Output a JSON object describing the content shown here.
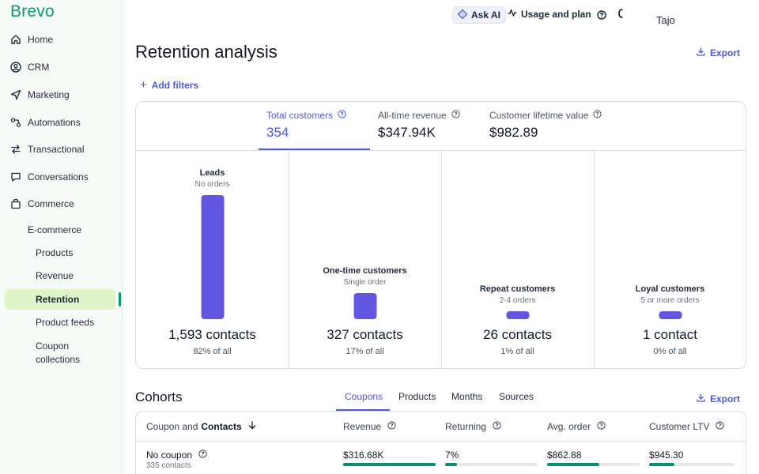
{
  "sidebar": {
    "logo": "Brevo",
    "items": [
      {
        "label": "Home",
        "icon": "home-icon"
      },
      {
        "label": "CRM",
        "icon": "contacts-icon"
      },
      {
        "label": "Marketing",
        "icon": "send-icon"
      },
      {
        "label": "Automations",
        "icon": "automation-icon"
      },
      {
        "label": "Transactional",
        "icon": "transfer-icon"
      },
      {
        "label": "Conversations",
        "icon": "chat-icon"
      },
      {
        "label": "Commerce",
        "icon": "bag-icon"
      }
    ],
    "ecommerce_label": "E-commerce",
    "sub_items": [
      "Products",
      "Revenue",
      "Retention",
      "Product feeds",
      "Coupon",
      "collections"
    ]
  },
  "topbar": {
    "ask_ai": "Ask AI",
    "usage": "Usage and plan",
    "user": "Tajo"
  },
  "page": {
    "title": "Retention analysis",
    "export": "Export",
    "add_filters": "Add filters"
  },
  "metrics": [
    {
      "label": "Total customers",
      "value": "354"
    },
    {
      "label": "All-time revenue",
      "value": "$347.94K"
    },
    {
      "label": "Customer lifetime value",
      "value": "$982.89"
    }
  ],
  "segments": [
    {
      "name": "Leads",
      "desc": "No orders",
      "count": "1,593 contacts",
      "share": "82% of all",
      "percent": 82
    },
    {
      "name": "One-time customers",
      "desc": "Single order",
      "count": "327 contacts",
      "share": "17% of all",
      "percent": 17
    },
    {
      "name": "Repeat customers",
      "desc": "2-4 orders",
      "count": "26 contacts",
      "share": "1% of all",
      "percent": 1
    },
    {
      "name": "Loyal customers",
      "desc": "5 or more orders",
      "count": "1 contact",
      "share": "0% of all",
      "percent": 0
    }
  ],
  "cohorts": {
    "title": "Cohorts",
    "tabs": [
      "Coupons",
      "Products",
      "Months",
      "Sources"
    ],
    "export": "Export",
    "columns": {
      "first": "Coupon and",
      "first_bold": "Contacts",
      "revenue": "Revenue",
      "returning": "Returning",
      "avg_order": "Avg. order",
      "ltv": "Customer LTV"
    },
    "rows": [
      {
        "name": "No coupon",
        "contacts": "335 contacts",
        "revenue": "$316.68K",
        "revenue_pct": 100,
        "returning": "7%",
        "returning_pct": 13,
        "avg_order": "$862.88",
        "avg_order_pct": 56,
        "ltv": "$945.30",
        "ltv_pct": 30
      }
    ]
  }
}
